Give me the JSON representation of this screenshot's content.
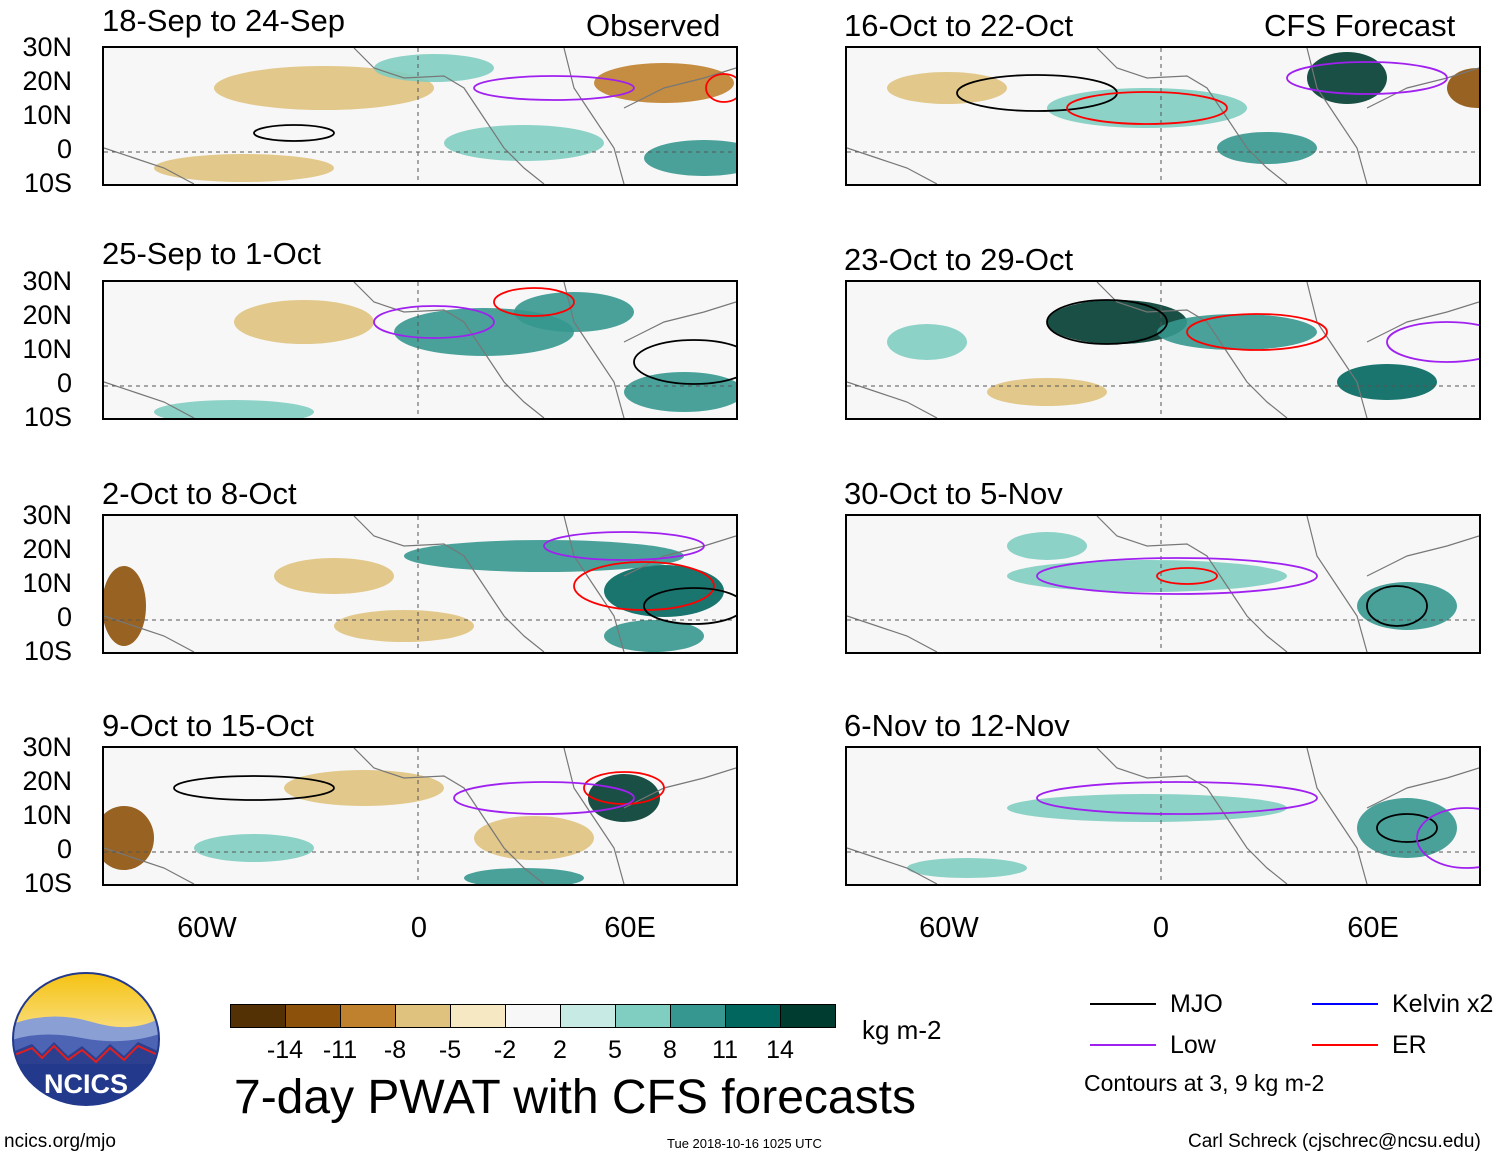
{
  "header": {
    "observed_label": "Observed",
    "forecast_label": "CFS Forecast"
  },
  "panels": {
    "observed": [
      {
        "title": "18-Sep to 24-Sep"
      },
      {
        "title": "25-Sep to 1-Oct"
      },
      {
        "title": "2-Oct to 8-Oct"
      },
      {
        "title": "9-Oct to 15-Oct"
      }
    ],
    "forecast": [
      {
        "title": "16-Oct to 22-Oct"
      },
      {
        "title": "23-Oct to 29-Oct"
      },
      {
        "title": "30-Oct to 5-Nov"
      },
      {
        "title": "6-Nov to 12-Nov"
      }
    ]
  },
  "axes": {
    "lat_ticks": [
      "30N",
      "20N",
      "10N",
      "0",
      "10S"
    ],
    "lon_ticks": [
      "60W",
      "0",
      "60E"
    ]
  },
  "colorbar": {
    "colors": [
      "#543005",
      "#8c510a",
      "#bf812d",
      "#dfc27d",
      "#f6e8c3",
      "#f7f7f7",
      "#c7eae5",
      "#80cdc1",
      "#35978f",
      "#01665e",
      "#003c30"
    ],
    "labels": [
      "-14",
      "-11",
      "-8",
      "-5",
      "-2",
      "2",
      "5",
      "8",
      "11",
      "14"
    ],
    "unit": "kg m-2"
  },
  "title": "7-day PWAT with CFS forecasts",
  "legend": {
    "items": [
      {
        "label": "MJO",
        "color": "#000000"
      },
      {
        "label": "Kelvin x2",
        "color": "#0000ff"
      },
      {
        "label": "Low",
        "color": "#a020f0"
      },
      {
        "label": "ER",
        "color": "#ff0000"
      }
    ],
    "note": "Contours at 3, 9 kg m-2"
  },
  "logo": {
    "text": "NCICS"
  },
  "footer": {
    "url": "ncics.org/mjo",
    "timestamp": "Tue 2018-10-16 1025 UTC",
    "author": "Carl Schreck (cjschrec@ncsu.edu)"
  }
}
